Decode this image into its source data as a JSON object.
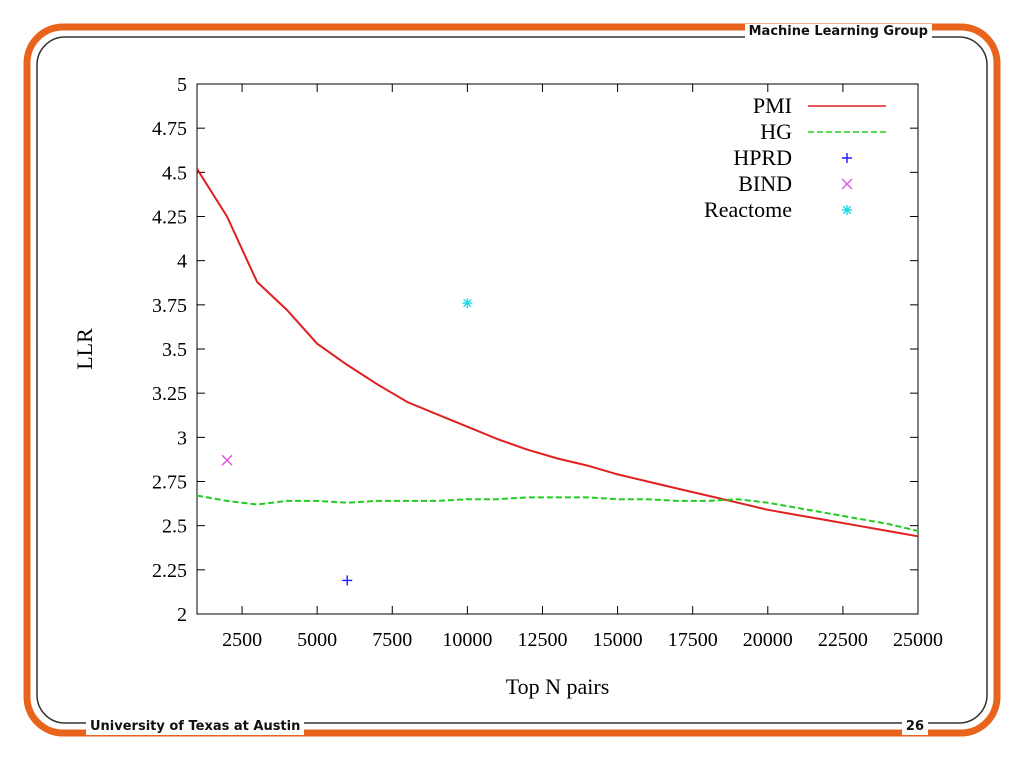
{
  "slide": {
    "header_right": "Machine Learning Group",
    "footer_left": "University of Texas at Austin",
    "page_number": "26",
    "frame_colors": {
      "outer": "#e8641c",
      "inner": "#333333"
    }
  },
  "chart_data": {
    "type": "line",
    "title": "",
    "xlabel": "Top N pairs",
    "ylabel": "LLR",
    "xlim": [
      1000,
      25000
    ],
    "ylim": [
      2,
      5
    ],
    "xticks": [
      2500,
      5000,
      7500,
      10000,
      12500,
      15000,
      17500,
      20000,
      22500,
      25000
    ],
    "yticks": [
      2,
      2.25,
      2.5,
      2.75,
      3,
      3.25,
      3.5,
      3.75,
      4,
      4.25,
      4.5,
      4.75,
      5
    ],
    "grid": false,
    "legend_position": "top-right",
    "series": [
      {
        "name": "PMI",
        "style": "solid",
        "color": "#e02020",
        "x": [
          1000,
          2000,
          3000,
          4000,
          5000,
          6000,
          7000,
          8000,
          9000,
          10000,
          11000,
          12000,
          13000,
          14000,
          15000,
          16000,
          17000,
          18000,
          19000,
          20000,
          21000,
          22000,
          23000,
          24000,
          25000
        ],
        "y": [
          4.52,
          4.25,
          3.88,
          3.72,
          3.53,
          3.41,
          3.3,
          3.2,
          3.13,
          3.06,
          2.99,
          2.93,
          2.88,
          2.84,
          2.79,
          2.75,
          2.71,
          2.67,
          2.63,
          2.59,
          2.56,
          2.53,
          2.5,
          2.47,
          2.44
        ]
      },
      {
        "name": "HG",
        "style": "dashed",
        "color": "#22cc22",
        "x": [
          1000,
          2000,
          3000,
          4000,
          5000,
          6000,
          7000,
          8000,
          9000,
          10000,
          11000,
          12000,
          13000,
          14000,
          15000,
          16000,
          17000,
          18000,
          19000,
          20000,
          21000,
          22000,
          23000,
          24000,
          25000
        ],
        "y": [
          2.67,
          2.64,
          2.62,
          2.64,
          2.64,
          2.63,
          2.64,
          2.64,
          2.64,
          2.65,
          2.65,
          2.66,
          2.66,
          2.66,
          2.65,
          2.65,
          2.64,
          2.64,
          2.65,
          2.63,
          2.6,
          2.57,
          2.54,
          2.51,
          2.47
        ]
      }
    ],
    "points": [
      {
        "name": "HPRD",
        "marker": "+",
        "color": "#1a1aff",
        "x": 6000,
        "y": 2.19
      },
      {
        "name": "BIND",
        "marker": "x",
        "color": "#e050e0",
        "x": 2000,
        "y": 2.87
      },
      {
        "name": "Reactome",
        "marker": "*",
        "color": "#20d8e8",
        "x": 10000,
        "y": 3.76
      }
    ]
  }
}
